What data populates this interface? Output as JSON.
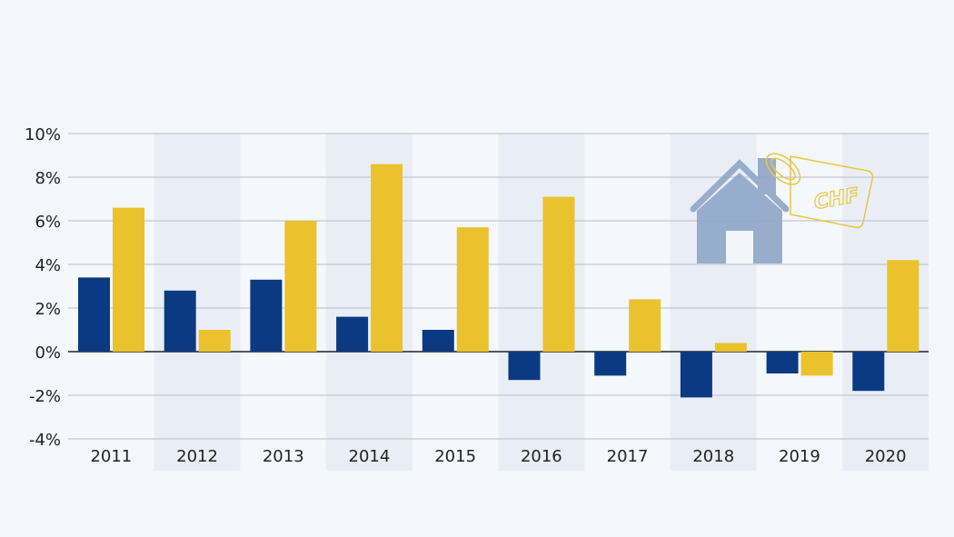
{
  "chart_data": {
    "type": "bar",
    "title": "",
    "xlabel": "",
    "ylabel": "",
    "categories": [
      "2011",
      "2012",
      "2013",
      "2014",
      "2015",
      "2016",
      "2017",
      "2018",
      "2019",
      "2020"
    ],
    "series": [
      {
        "color": "#0b3a82",
        "values": [
          3.4,
          2.8,
          3.3,
          1.6,
          1.0,
          -1.3,
          -1.1,
          -2.1,
          -1.0,
          -1.8
        ]
      },
      {
        "color": "#e9c22e",
        "values": [
          6.6,
          1.0,
          6.0,
          8.6,
          5.7,
          7.1,
          2.4,
          0.4,
          -1.1,
          4.2
        ]
      }
    ],
    "ylim": [
      -4,
      10
    ],
    "yticks": [
      10,
      8,
      6,
      4,
      2,
      0,
      -2,
      -4
    ],
    "ytick_labels": [
      "10%",
      "8%",
      "6%",
      "4%",
      "2%",
      "0%",
      "-2%",
      "-4%"
    ],
    "grid": true,
    "legend": "none",
    "decoration": {
      "icon": "house-with-price-tag-icon",
      "tag_text": "CHF"
    }
  }
}
